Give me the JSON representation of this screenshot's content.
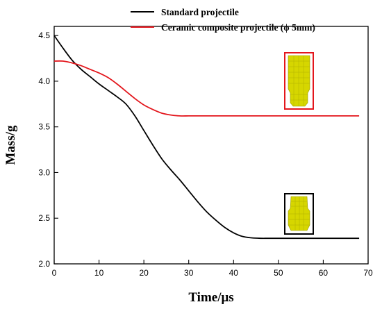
{
  "chart_data": {
    "type": "line",
    "xlabel": "Time/μs",
    "ylabel": "Mass/g",
    "xlim": [
      0,
      70
    ],
    "ylim": [
      2.0,
      4.6
    ],
    "x_ticks": [
      0,
      10,
      20,
      30,
      40,
      50,
      60,
      70
    ],
    "y_ticks": [
      2.0,
      2.5,
      3.0,
      3.5,
      4.0,
      4.5
    ],
    "grid": false,
    "legend_position": "top-right",
    "series": [
      {
        "name": "Standard projectile",
        "color": "#000000",
        "x": [
          0,
          2,
          4,
          6,
          8,
          10,
          12,
          14,
          16,
          18,
          20,
          22,
          24,
          26,
          28,
          30,
          32,
          34,
          36,
          38,
          40,
          42,
          44,
          46,
          48,
          50,
          55,
          60,
          65,
          68
        ],
        "y": [
          4.5,
          4.36,
          4.23,
          4.13,
          4.05,
          3.97,
          3.9,
          3.83,
          3.75,
          3.62,
          3.46,
          3.3,
          3.15,
          3.03,
          2.92,
          2.8,
          2.68,
          2.57,
          2.48,
          2.4,
          2.34,
          2.3,
          2.285,
          2.28,
          2.28,
          2.28,
          2.28,
          2.28,
          2.28,
          2.28
        ]
      },
      {
        "name": "Ceramic composite projectile (ϕ 5mm)",
        "color": "#e3161c",
        "x": [
          0,
          2,
          4,
          6,
          8,
          10,
          12,
          14,
          16,
          18,
          20,
          22,
          24,
          26,
          28,
          30,
          32,
          35,
          40,
          50,
          60,
          68
        ],
        "y": [
          4.22,
          4.22,
          4.2,
          4.17,
          4.13,
          4.09,
          4.04,
          3.97,
          3.89,
          3.81,
          3.74,
          3.69,
          3.65,
          3.63,
          3.62,
          3.62,
          3.62,
          3.62,
          3.62,
          3.62,
          3.62,
          3.62
        ]
      }
    ],
    "inset_images": [
      {
        "name": "ceramic-projectile-mesh",
        "frame_color": "#e3161c"
      },
      {
        "name": "standard-projectile-mesh",
        "frame_color": "#000000"
      }
    ]
  }
}
